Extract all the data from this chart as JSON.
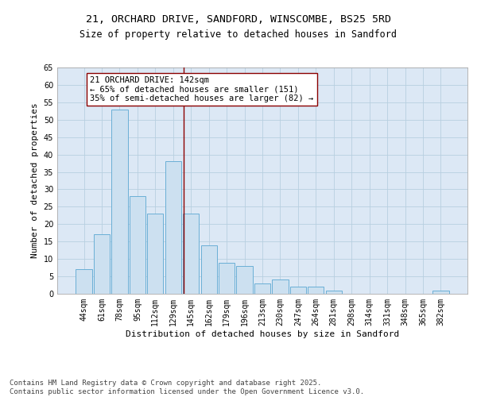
{
  "title_line1": "21, ORCHARD DRIVE, SANDFORD, WINSCOMBE, BS25 5RD",
  "title_line2": "Size of property relative to detached houses in Sandford",
  "xlabel": "Distribution of detached houses by size in Sandford",
  "ylabel": "Number of detached properties",
  "bin_labels": [
    "44sqm",
    "61sqm",
    "78sqm",
    "95sqm",
    "112sqm",
    "129sqm",
    "145sqm",
    "162sqm",
    "179sqm",
    "196sqm",
    "213sqm",
    "230sqm",
    "247sqm",
    "264sqm",
    "281sqm",
    "298sqm",
    "314sqm",
    "331sqm",
    "348sqm",
    "365sqm",
    "382sqm"
  ],
  "bar_values": [
    7,
    17,
    53,
    28,
    23,
    38,
    23,
    14,
    9,
    8,
    3,
    4,
    2,
    2,
    1,
    0,
    0,
    0,
    0,
    0,
    1
  ],
  "bar_color": "#cce0f0",
  "bar_edge_color": "#6aafd6",
  "vline_x_index": 5.57,
  "vline_color": "#8b0000",
  "annotation_text": "21 ORCHARD DRIVE: 142sqm\n← 65% of detached houses are smaller (151)\n35% of semi-detached houses are larger (82) →",
  "annotation_box_color": "#ffffff",
  "annotation_box_edge_color": "#8b0000",
  "ylim": [
    0,
    65
  ],
  "yticks": [
    0,
    5,
    10,
    15,
    20,
    25,
    30,
    35,
    40,
    45,
    50,
    55,
    60,
    65
  ],
  "grid_color": "#b8cfe0",
  "background_color": "#dce8f5",
  "footer_text": "Contains HM Land Registry data © Crown copyright and database right 2025.\nContains public sector information licensed under the Open Government Licence v3.0.",
  "title_fontsize": 9.5,
  "subtitle_fontsize": 8.5,
  "axis_label_fontsize": 8,
  "tick_fontsize": 7,
  "annotation_fontsize": 7.5,
  "footer_fontsize": 6.5
}
